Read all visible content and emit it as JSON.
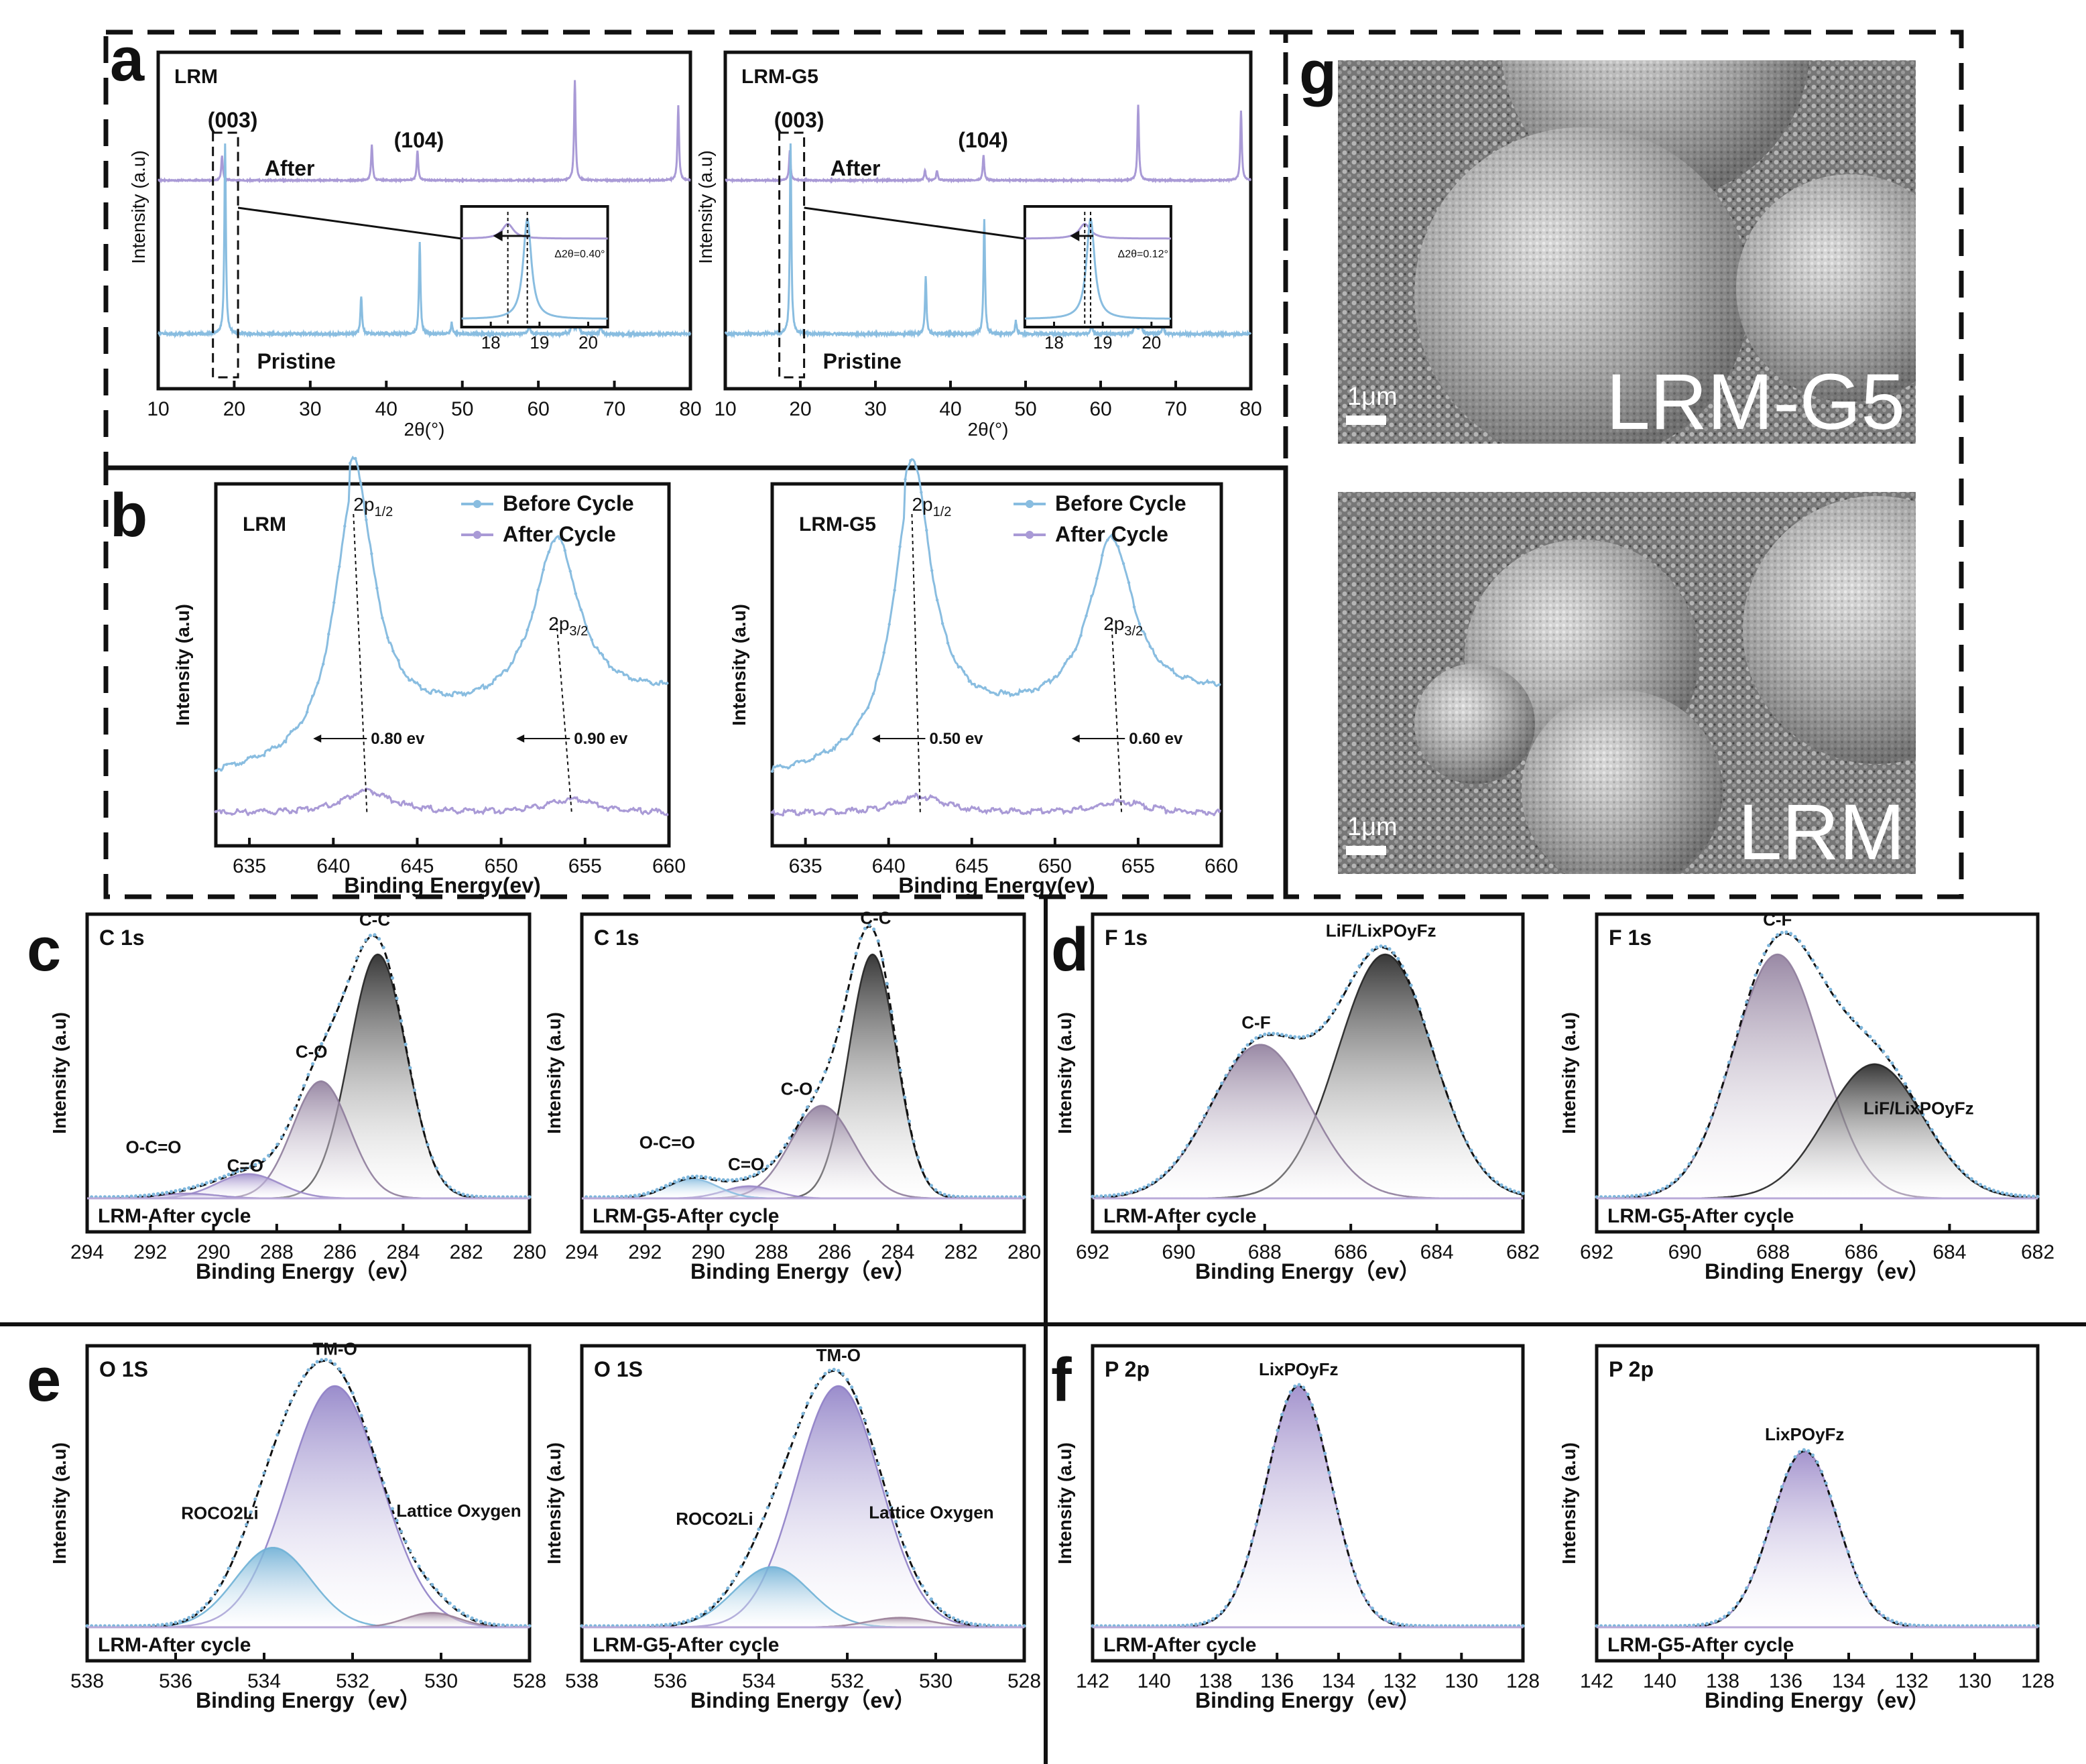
{
  "figure": {
    "panel_letters": [
      "a",
      "b",
      "c",
      "d",
      "e",
      "f",
      "g"
    ]
  },
  "chart_data": [
    {
      "id": "a1",
      "type": "line",
      "panel": "a",
      "title": "LRM",
      "xlabel": "2θ(°)",
      "ylabel": "Intensity (a.u)",
      "xlim": [
        10,
        80
      ],
      "xticks": [
        "10",
        "20",
        "30",
        "40",
        "50",
        "60",
        "70",
        "80"
      ],
      "annotations": [
        "(003)",
        "(104)",
        "After",
        "Pristine"
      ],
      "inset": {
        "xticks": [
          "18",
          "19",
          "20"
        ],
        "label": "Δ2θ=0.40°"
      },
      "series": [
        {
          "name": "After",
          "color": "#a99ad6",
          "peaks": [
            [
              18.4,
              0.25
            ],
            [
              38.1,
              0.35
            ],
            [
              44.1,
              0.3
            ],
            [
              64.8,
              1.0
            ],
            [
              78.4,
              0.75
            ]
          ]
        },
        {
          "name": "Pristine",
          "color": "#89bde0",
          "peaks": [
            [
              18.8,
              1.0
            ],
            [
              36.7,
              0.2
            ],
            [
              44.4,
              0.48
            ],
            [
              48.6,
              0.06
            ],
            [
              58.8,
              0.06
            ],
            [
              64.5,
              0.12
            ],
            [
              65.2,
              0.12
            ],
            [
              68.2,
              0.05
            ]
          ]
        }
      ]
    },
    {
      "id": "a2",
      "type": "line",
      "panel": "a",
      "title": "LRM-G5",
      "xlabel": "2θ(°)",
      "ylabel": "Intensity (a.u)",
      "xlim": [
        10,
        80
      ],
      "xticks": [
        "10",
        "20",
        "30",
        "40",
        "50",
        "60",
        "70",
        "80"
      ],
      "annotations": [
        "(003)",
        "(104)",
        "After",
        "Pristine"
      ],
      "inset": {
        "xticks": [
          "18",
          "19",
          "20"
        ],
        "label": "Δ2θ=0.12°"
      },
      "series": [
        {
          "name": "After",
          "color": "#a99ad6",
          "peaks": [
            [
              18.6,
              0.3
            ],
            [
              36.6,
              0.1
            ],
            [
              38.2,
              0.1
            ],
            [
              44.4,
              0.25
            ],
            [
              65.0,
              0.75
            ],
            [
              78.7,
              0.7
            ]
          ]
        },
        {
          "name": "Pristine",
          "color": "#89bde0",
          "peaks": [
            [
              18.7,
              1.0
            ],
            [
              36.7,
              0.3
            ],
            [
              44.5,
              0.6
            ],
            [
              48.7,
              0.07
            ],
            [
              58.8,
              0.07
            ],
            [
              64.6,
              0.12
            ],
            [
              65.3,
              0.12
            ],
            [
              68.3,
              0.06
            ]
          ]
        }
      ]
    },
    {
      "id": "b1",
      "type": "line",
      "panel": "b",
      "title": "LRM",
      "xlabel": "Binding Energy(ev)",
      "ylabel": "Intensity (a.u)",
      "xlim": [
        633,
        660
      ],
      "xticks": [
        "635",
        "640",
        "645",
        "650",
        "655",
        "660"
      ],
      "peak_labels": [
        {
          "text": "2p",
          "sub": "1/2"
        },
        {
          "text": "2p",
          "sub": "3/2"
        }
      ],
      "shifts": [
        "0.80 ev",
        "0.90 ev"
      ],
      "series": [
        {
          "name": "Before Cycle",
          "color": "#89bde0",
          "peaks": [
            [
              641.2,
              1.0,
              1.4
            ],
            [
              653.3,
              0.62,
              1.6
            ]
          ]
        },
        {
          "name": "After Cycle",
          "color": "#a99ad6",
          "peaks": [
            [
              642.0,
              0.08,
              1.8
            ],
            [
              654.2,
              0.05,
              1.8
            ]
          ]
        }
      ]
    },
    {
      "id": "b2",
      "type": "line",
      "panel": "b",
      "title": "LRM-G5",
      "xlabel": "Binding Energy(ev)",
      "ylabel": "Intensity (a.u)",
      "xlim": [
        633,
        660
      ],
      "xticks": [
        "635",
        "640",
        "645",
        "650",
        "655",
        "660"
      ],
      "peak_labels": [
        {
          "text": "2p",
          "sub": "1/2"
        },
        {
          "text": "2p",
          "sub": "3/2"
        }
      ],
      "shifts": [
        "0.50 ev",
        "0.60 ev"
      ],
      "series": [
        {
          "name": "Before Cycle",
          "color": "#89bde0",
          "peaks": [
            [
              641.4,
              1.0,
              1.4
            ],
            [
              653.4,
              0.62,
              1.6
            ]
          ]
        },
        {
          "name": "After Cycle",
          "color": "#a99ad6",
          "peaks": [
            [
              641.9,
              0.06,
              1.8
            ],
            [
              654.0,
              0.04,
              1.8
            ]
          ]
        }
      ]
    },
    {
      "id": "c1",
      "type": "area",
      "panel": "c",
      "title": "C 1s",
      "sample": "LRM-After cycle",
      "xlabel": "Binding Energy（ev）",
      "ylabel": "Intensity (a.u)",
      "xlim": [
        294,
        280
      ],
      "xticks": [
        "294",
        "292",
        "290",
        "288",
        "286",
        "284",
        "282",
        "280"
      ],
      "components": [
        {
          "label": "C-C",
          "center": 284.8,
          "height": 1.0,
          "sigma": 0.9,
          "color": "#222222"
        },
        {
          "label": "C-O",
          "center": 286.6,
          "height": 0.48,
          "sigma": 0.9,
          "color": "#8e7c9b"
        },
        {
          "label": "C=O",
          "center": 288.9,
          "height": 0.1,
          "sigma": 1.0,
          "color": "#9a88c8"
        },
        {
          "label": "O-C=O",
          "center": 290.8,
          "height": 0.02,
          "sigma": 0.9,
          "color": "#9a88c8"
        }
      ]
    },
    {
      "id": "c2",
      "type": "area",
      "panel": "c",
      "title": "C 1s",
      "sample": "LRM-G5-After cycle",
      "xlabel": "Binding Energy（ev）",
      "ylabel": "Intensity (a.u)",
      "xlim": [
        294,
        280
      ],
      "xticks": [
        "294",
        "292",
        "290",
        "288",
        "286",
        "284",
        "282",
        "280"
      ],
      "components": [
        {
          "label": "C-C",
          "center": 284.8,
          "height": 1.0,
          "sigma": 0.75,
          "color": "#222222"
        },
        {
          "label": "C-O",
          "center": 286.4,
          "height": 0.38,
          "sigma": 1.0,
          "color": "#8e7c9b"
        },
        {
          "label": "C=O",
          "center": 288.7,
          "height": 0.05,
          "sigma": 0.8,
          "color": "#9a88c8"
        },
        {
          "label": "O-C=O",
          "center": 290.5,
          "height": 0.08,
          "sigma": 0.8,
          "color": "#89bde0"
        }
      ]
    },
    {
      "id": "d1",
      "type": "area",
      "panel": "d",
      "title": "F 1s",
      "sample": "LRM-After cycle",
      "xlabel": "Binding Energy（ev）",
      "ylabel": "Intensity (a.u)",
      "xlim": [
        692,
        682
      ],
      "xticks": [
        "692",
        "690",
        "688",
        "686",
        "684",
        "682"
      ],
      "components": [
        {
          "label": "LiF/LixPOyFz",
          "center": 685.2,
          "height": 1.0,
          "sigma": 1.1,
          "color": "#222222"
        },
        {
          "label": "C-F",
          "center": 688.1,
          "height": 0.63,
          "sigma": 1.15,
          "color": "#8e7c9b"
        }
      ]
    },
    {
      "id": "d2",
      "type": "area",
      "panel": "d",
      "title": "F 1s",
      "sample": "LRM-G5-After cycle",
      "xlabel": "Binding Energy（ev）",
      "ylabel": "Intensity (a.u)",
      "xlim": [
        692,
        682
      ],
      "xticks": [
        "692",
        "690",
        "688",
        "686",
        "684",
        "682"
      ],
      "components": [
        {
          "label": "C-F",
          "center": 687.9,
          "height": 1.0,
          "sigma": 1.0,
          "color": "#8e7c9b"
        },
        {
          "label": "LiF/LixPOyFz",
          "center": 685.7,
          "height": 0.55,
          "sigma": 1.1,
          "color": "#222222"
        }
      ]
    },
    {
      "id": "e1",
      "type": "area",
      "panel": "e",
      "title": "O 1S",
      "sample": "LRM-After cycle",
      "xlabel": "Binding Energy（ev）",
      "ylabel": "Intensity (a.u)",
      "xlim": [
        538,
        528
      ],
      "xticks": [
        "538",
        "536",
        "534",
        "532",
        "530",
        "528"
      ],
      "components": [
        {
          "label": "TM-O",
          "center": 532.4,
          "height": 1.0,
          "sigma": 1.05,
          "color": "#8f80c6"
        },
        {
          "label": "ROCO2Li",
          "center": 533.8,
          "height": 0.33,
          "sigma": 0.85,
          "color": "#6fb1d6"
        },
        {
          "label": "Lattice Oxygen",
          "center": 530.2,
          "height": 0.06,
          "sigma": 0.6,
          "color": "#9a7f98"
        }
      ]
    },
    {
      "id": "e2",
      "type": "area",
      "panel": "e",
      "title": "O 1S",
      "sample": "LRM-G5-After cycle",
      "xlabel": "Binding Energy（ev）",
      "ylabel": "Intensity (a.u)",
      "xlim": [
        538,
        528
      ],
      "xticks": [
        "538",
        "536",
        "534",
        "532",
        "530",
        "528"
      ],
      "components": [
        {
          "label": "TM-O",
          "center": 532.2,
          "height": 1.0,
          "sigma": 0.95,
          "color": "#8f80c6"
        },
        {
          "label": "ROCO2Li",
          "center": 533.7,
          "height": 0.25,
          "sigma": 0.85,
          "color": "#6fb1d6"
        },
        {
          "label": "Lattice Oxygen",
          "center": 530.8,
          "height": 0.04,
          "sigma": 0.7,
          "color": "#9a7f98"
        }
      ]
    },
    {
      "id": "f1",
      "type": "area",
      "panel": "f",
      "title": "P 2p",
      "sample": "LRM-After cycle",
      "xlabel": "Binding Energy（ev）",
      "ylabel": "Intensity (a.u)",
      "xlim": [
        142,
        128
      ],
      "xticks": [
        "142",
        "140",
        "138",
        "136",
        "134",
        "132",
        "130",
        "128"
      ],
      "components": [
        {
          "label": "LixPOyFz",
          "center": 135.3,
          "height": 1.0,
          "sigma": 1.05,
          "color": "#9a88c8"
        }
      ]
    },
    {
      "id": "f2",
      "type": "area",
      "panel": "f",
      "title": "P 2p",
      "sample": "LRM-G5-After cycle",
      "xlabel": "Binding Energy（ev）",
      "ylabel": "Intensity (a.u)",
      "xlim": [
        142,
        128
      ],
      "xticks": [
        "142",
        "140",
        "138",
        "136",
        "134",
        "132",
        "130",
        "128"
      ],
      "components": [
        {
          "label": "LixPOyFz",
          "center": 135.4,
          "height": 0.73,
          "sigma": 1.05,
          "color": "#9a88c8"
        }
      ]
    }
  ],
  "sem": [
    {
      "label": "LRM-G5",
      "scale": "1μm"
    },
    {
      "label": "LRM",
      "scale": "1μm"
    }
  ]
}
